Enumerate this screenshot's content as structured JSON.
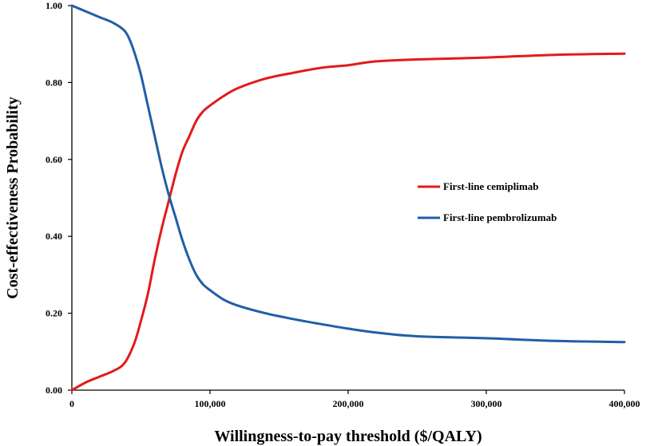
{
  "chart_data": {
    "type": "line",
    "title": "",
    "xlabel": "Willingness-to-pay threshold ($/QALY)",
    "ylabel": "Cost-effectiveness Probability",
    "xlim": [
      0,
      400000
    ],
    "ylim": [
      0,
      1
    ],
    "x_ticks": [
      0,
      100000,
      200000,
      300000,
      400000
    ],
    "x_tick_labels": [
      "0",
      "100,000",
      "200,000",
      "300,000",
      "400,000"
    ],
    "y_ticks": [
      0,
      0.2,
      0.4,
      0.6,
      0.8,
      1.0
    ],
    "y_tick_labels": [
      "0.00",
      "0.20",
      "0.40",
      "0.60",
      "0.80",
      "1.00"
    ],
    "grid": false,
    "legend_position": "right-middle",
    "series": [
      {
        "name": "First-line cemiplimab",
        "color": "#e31a1c",
        "x": [
          0,
          10000,
          20000,
          30000,
          38000,
          45000,
          50000,
          55000,
          60000,
          65000,
          70000,
          75000,
          80000,
          85000,
          90000,
          95000,
          100000,
          110000,
          120000,
          140000,
          160000,
          180000,
          200000,
          220000,
          250000,
          300000,
          350000,
          400000
        ],
        "values": [
          0.0,
          0.02,
          0.035,
          0.05,
          0.07,
          0.12,
          0.18,
          0.25,
          0.34,
          0.42,
          0.49,
          0.56,
          0.62,
          0.66,
          0.7,
          0.725,
          0.74,
          0.765,
          0.785,
          0.81,
          0.825,
          0.838,
          0.845,
          0.855,
          0.86,
          0.865,
          0.872,
          0.875
        ]
      },
      {
        "name": "First-line pembrolizumab",
        "color": "#1f5fa6",
        "x": [
          0,
          10000,
          20000,
          30000,
          38000,
          42000,
          46000,
          50000,
          55000,
          60000,
          65000,
          70000,
          75000,
          80000,
          85000,
          90000,
          95000,
          100000,
          110000,
          120000,
          140000,
          160000,
          180000,
          200000,
          220000,
          250000,
          300000,
          350000,
          400000
        ],
        "values": [
          1.0,
          0.985,
          0.97,
          0.955,
          0.935,
          0.91,
          0.87,
          0.82,
          0.74,
          0.66,
          0.58,
          0.51,
          0.45,
          0.39,
          0.34,
          0.3,
          0.275,
          0.26,
          0.235,
          0.22,
          0.2,
          0.185,
          0.172,
          0.16,
          0.15,
          0.14,
          0.135,
          0.128,
          0.125
        ]
      }
    ]
  }
}
